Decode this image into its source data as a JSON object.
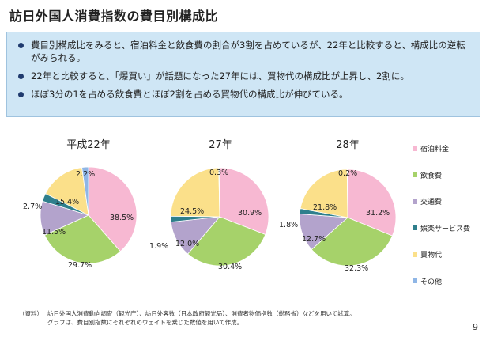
{
  "title": "訪日外国人消費指数の費目別構成比",
  "summary_bullets": [
    "費目別構成比をみると、宿泊料金と飲食費の割合が3割を占めているが、22年と比較すると、構成比の逆転がみられる。",
    "22年と比較すると、「爆買い」が話題になった27年には、買物代の構成比が上昇し、2割に。",
    "ほぼ3分の1を占める飲食費とほぼ2割を占める買物代の構成比が伸びている。"
  ],
  "chart_data": [
    {
      "type": "pie",
      "title": "平成22年",
      "categories": [
        "宿泊料金",
        "飲食費",
        "交通費",
        "娯楽サービス費",
        "買物代",
        "その他"
      ],
      "values": [
        38.5,
        29.7,
        11.5,
        2.7,
        15.4,
        2.2
      ],
      "labels": [
        "38.5%",
        "29.7%",
        "11.5%",
        "2.7%",
        "15.4%",
        "2.2%"
      ]
    },
    {
      "type": "pie",
      "title": "27年",
      "categories": [
        "宿泊料金",
        "飲食費",
        "交通費",
        "娯楽サービス費",
        "買物代",
        "その他"
      ],
      "values": [
        30.9,
        30.4,
        12.0,
        1.9,
        24.5,
        0.3
      ],
      "labels": [
        "30.9%",
        "30.4%",
        "12.0%",
        "1.9%",
        "24.5%",
        "0.3%"
      ]
    },
    {
      "type": "pie",
      "title": "28年",
      "categories": [
        "宿泊料金",
        "飲食費",
        "交通費",
        "娯楽サービス費",
        "買物代",
        "その他"
      ],
      "values": [
        31.2,
        32.3,
        12.7,
        1.8,
        21.8,
        0.2
      ],
      "labels": [
        "31.2%",
        "32.3%",
        "12.7%",
        "1.8%",
        "21.8%",
        "0.2%"
      ]
    }
  ],
  "legend": {
    "placement": "right",
    "items": [
      {
        "label": "宿泊料金",
        "color": "#f7b8d2"
      },
      {
        "label": "飲食費",
        "color": "#a6d26a"
      },
      {
        "label": "交通費",
        "color": "#b3a3cc"
      },
      {
        "label": "娯楽サービス費",
        "color": "#2f7f8c"
      },
      {
        "label": "買物代",
        "color": "#fbe08a"
      },
      {
        "label": "その他",
        "color": "#8fb6e6"
      }
    ]
  },
  "note": {
    "tag": "（資料）",
    "line1": "訪日外国人消費動向調査（観光庁）、訪日外客数（日本政府観光局）、消費者物価指数（総務省）などを用いて試算。",
    "line2": "グラフは、費目別指数にそれぞれのウェイトを乗じた数値を用いて作成。"
  },
  "page_number": "9"
}
